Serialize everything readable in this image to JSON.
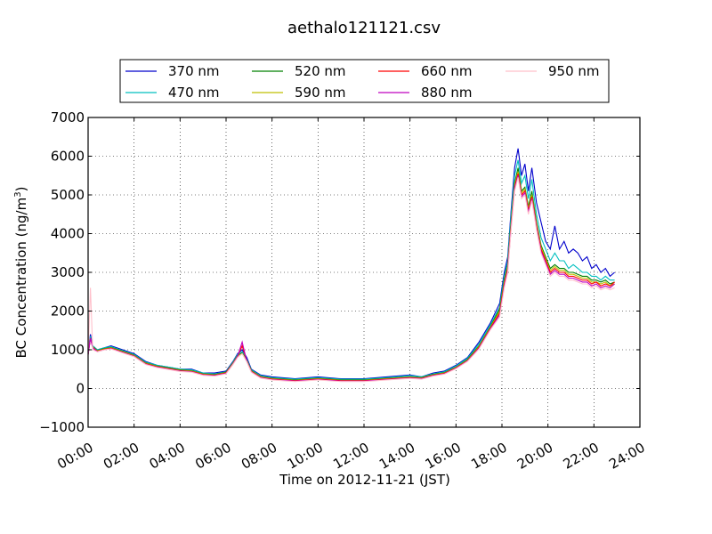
{
  "chart_data": {
    "type": "line",
    "title": "aethalo121121.csv",
    "xlabel": "Time on 2012-11-21 (JST)",
    "ylabel": "BC Concentration (ng/m",
    "ylabel_superscript": "3",
    "ylabel_suffix": ")",
    "xlim": [
      0,
      24
    ],
    "ylim": [
      -1000,
      7000
    ],
    "x_ticks": [
      0,
      2,
      4,
      6,
      8,
      10,
      12,
      14,
      16,
      18,
      20,
      22,
      24
    ],
    "x_tick_labels": [
      "00:00",
      "02:00",
      "04:00",
      "06:00",
      "08:00",
      "10:00",
      "12:00",
      "14:00",
      "16:00",
      "18:00",
      "20:00",
      "22:00",
      "24:00"
    ],
    "y_ticks": [
      -1000,
      0,
      1000,
      2000,
      3000,
      4000,
      5000,
      6000,
      7000
    ],
    "y_tick_labels": [
      "−1000",
      "0",
      "1000",
      "2000",
      "3000",
      "4000",
      "5000",
      "6000",
      "7000"
    ],
    "grid": true,
    "legend_placement": "top-center",
    "anchor_x": [
      0,
      0.1,
      0.2,
      0.4,
      0.7,
      1.0,
      1.5,
      2.0,
      2.5,
      3.0,
      3.5,
      4.0,
      4.5,
      5.0,
      5.5,
      6.0,
      6.3,
      6.5,
      6.7,
      6.9,
      7.1,
      7.5,
      8.0,
      9.0,
      10.0,
      11.0,
      12.0,
      13.0,
      14.0,
      14.5,
      15.0,
      15.5,
      16.0,
      16.5,
      17.0,
      17.5,
      17.9,
      18.1,
      18.25,
      18.4,
      18.55,
      18.7,
      18.85,
      19.0,
      19.15,
      19.3,
      19.5,
      19.7,
      19.9,
      20.1,
      20.3,
      20.5,
      20.7,
      20.9,
      21.1,
      21.3,
      21.5,
      21.7,
      21.9,
      22.1,
      22.3,
      22.5,
      22.7,
      22.9
    ],
    "series": [
      {
        "name": "370 nm",
        "color": "#0000cc",
        "values": [
          900,
          1400,
          1100,
          1000,
          1050,
          1100,
          1000,
          900,
          700,
          600,
          550,
          500,
          500,
          400,
          400,
          450,
          700,
          900,
          1000,
          800,
          500,
          350,
          300,
          250,
          300,
          250,
          250,
          300,
          350,
          300,
          400,
          450,
          600,
          800,
          1200,
          1700,
          2200,
          3000,
          3400,
          4600,
          5700,
          6200,
          5500,
          5800,
          5100,
          5700,
          4800,
          4300,
          3800,
          3600,
          4200,
          3600,
          3800,
          3500,
          3600,
          3500,
          3300,
          3400,
          3100,
          3200,
          3000,
          3100,
          2900,
          3000
        ]
      },
      {
        "name": "470 nm",
        "color": "#00bfbf",
        "values": [
          900,
          1350,
          1100,
          1000,
          1050,
          1080,
          980,
          880,
          680,
          600,
          550,
          500,
          480,
          400,
          380,
          430,
          680,
          880,
          950,
          750,
          480,
          330,
          280,
          240,
          280,
          240,
          240,
          280,
          330,
          300,
          380,
          430,
          580,
          780,
          1150,
          1650,
          2100,
          2900,
          3300,
          4500,
          5500,
          5900,
          5300,
          5500,
          4900,
          5400,
          4500,
          3900,
          3600,
          3300,
          3500,
          3300,
          3300,
          3100,
          3200,
          3100,
          3000,
          3000,
          2900,
          2900,
          2800,
          2900,
          2800,
          2800
        ]
      },
      {
        "name": "520 nm",
        "color": "#008000",
        "values": [
          900,
          1300,
          1080,
          980,
          1030,
          1060,
          960,
          860,
          660,
          580,
          530,
          480,
          460,
          380,
          360,
          420,
          660,
          850,
          920,
          730,
          460,
          310,
          260,
          220,
          260,
          220,
          220,
          260,
          300,
          280,
          360,
          410,
          550,
          750,
          1100,
          1600,
          2050,
          2800,
          3200,
          4300,
          5300,
          5700,
          5100,
          5200,
          4700,
          5100,
          4300,
          3700,
          3400,
          3100,
          3200,
          3100,
          3100,
          3000,
          3000,
          2950,
          2900,
          2900,
          2800,
          2800,
          2750,
          2800,
          2700,
          2750
        ]
      },
      {
        "name": "590 nm",
        "color": "#bfbf00",
        "values": [
          880,
          1300,
          1070,
          970,
          1020,
          1050,
          950,
          850,
          650,
          570,
          520,
          470,
          450,
          370,
          350,
          410,
          650,
          840,
          900,
          720,
          450,
          300,
          250,
          210,
          250,
          210,
          210,
          250,
          290,
          270,
          350,
          400,
          540,
          730,
          1080,
          1580,
          2000,
          2750,
          3150,
          4250,
          5250,
          5600,
          5050,
          5150,
          4650,
          5000,
          4250,
          3650,
          3350,
          3050,
          3150,
          3050,
          3050,
          2950,
          2950,
          2900,
          2850,
          2850,
          2750,
          2750,
          2700,
          2750,
          2650,
          2700
        ]
      },
      {
        "name": "660 nm",
        "color": "#ff0000",
        "values": [
          880,
          1300,
          1060,
          960,
          1010,
          1040,
          940,
          840,
          640,
          560,
          510,
          460,
          440,
          360,
          340,
          400,
          640,
          830,
          1100,
          710,
          440,
          290,
          240,
          200,
          240,
          200,
          200,
          240,
          280,
          260,
          340,
          390,
          530,
          720,
          1060,
          1560,
          1950,
          2700,
          3100,
          4200,
          5200,
          5550,
          5000,
          5100,
          4600,
          4950,
          4200,
          3600,
          3300,
          3000,
          3100,
          3000,
          3000,
          2900,
          2900,
          2850,
          2800,
          2800,
          2700,
          2750,
          2650,
          2700,
          2650,
          2750
        ]
      },
      {
        "name": "880 nm",
        "color": "#bf00bf",
        "values": [
          870,
          1300,
          1050,
          950,
          1000,
          1030,
          930,
          830,
          630,
          550,
          500,
          450,
          430,
          350,
          330,
          390,
          630,
          820,
          1200,
          700,
          430,
          280,
          230,
          190,
          230,
          190,
          190,
          230,
          270,
          250,
          330,
          380,
          520,
          710,
          1040,
          1540,
          1900,
          2650,
          3050,
          4150,
          5150,
          5500,
          4950,
          5050,
          4550,
          4900,
          4150,
          3550,
          3250,
          2950,
          3050,
          2950,
          2950,
          2850,
          2850,
          2800,
          2750,
          2750,
          2650,
          2700,
          2600,
          2650,
          2600,
          2700
        ]
      },
      {
        "name": "950 nm",
        "color": "#ffc0cb",
        "values": [
          870,
          2600,
          1000,
          950,
          1000,
          1020,
          920,
          820,
          620,
          540,
          490,
          440,
          420,
          340,
          320,
          380,
          620,
          800,
          900,
          690,
          420,
          270,
          220,
          180,
          220,
          180,
          180,
          220,
          260,
          240,
          320,
          370,
          510,
          700,
          1020,
          1520,
          1850,
          2600,
          3000,
          4100,
          5100,
          5450,
          4900,
          5000,
          4500,
          4850,
          4100,
          3500,
          3200,
          2900,
          3000,
          2900,
          2900,
          2800,
          2800,
          2750,
          2700,
          2700,
          2600,
          2650,
          2550,
          2600,
          2550,
          2600
        ]
      }
    ]
  }
}
